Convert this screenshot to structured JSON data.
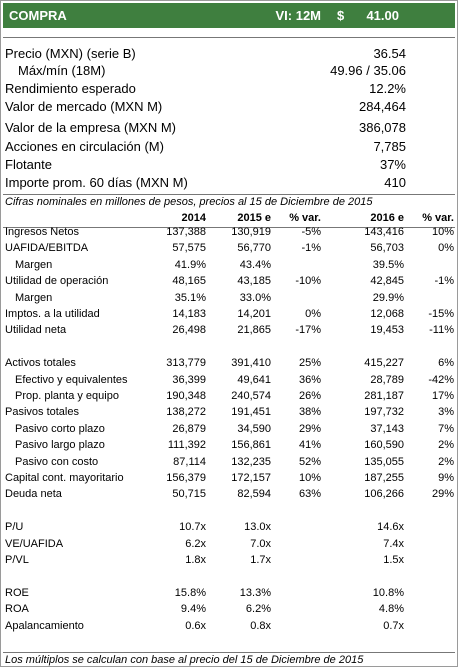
{
  "header": {
    "rating": "COMPRA",
    "horizon": "VI: 12M",
    "currency": "$",
    "target": "41.00"
  },
  "summary": [
    {
      "label": "Precio (MXN) (serie B)",
      "value": "36.54"
    },
    {
      "label": "Máx/mín (18M)",
      "value": "49.96 / 35.06",
      "sub": true
    },
    {
      "label": "Rendimiento esperado",
      "value": "12.2%"
    },
    {
      "label": "Valor de mercado (MXN M)",
      "value": "284,464"
    },
    {
      "label": "Valor de la empresa (MXN M)",
      "value": "386,078"
    },
    {
      "label": "Acciones en circulación (M)",
      "value": "7,785"
    },
    {
      "label": "Flotante",
      "value": "37%"
    },
    {
      "label": "Importe prom. 60 días (MXN M)",
      "value": "410"
    }
  ],
  "note": "Cifras nominales en millones de pesos, precios al 15 de Diciembre de 2015",
  "table": {
    "columns": [
      "2014",
      "2015 e",
      "% var.",
      "2016 e",
      "% var."
    ],
    "sections": [
      {
        "rows": [
          {
            "label": "Ingresos Netos",
            "cells": [
              "137,388",
              "130,919",
              "-5%",
              "143,416",
              "10%"
            ]
          },
          {
            "label": "UAFIDA/EBITDA",
            "cells": [
              "57,575",
              "56,770",
              "-1%",
              "56,703",
              "0%"
            ]
          },
          {
            "label": "Margen",
            "sub": true,
            "cells": [
              "41.9%",
              "43.4%",
              null,
              "39.5%",
              null
            ]
          },
          {
            "label": "Utilidad de operación",
            "cells": [
              "48,165",
              "43,185",
              "-10%",
              "42,845",
              "-1%"
            ]
          },
          {
            "label": "Margen",
            "sub": true,
            "cells": [
              "35.1%",
              "33.0%",
              null,
              "29.9%",
              null
            ]
          },
          {
            "label": "Imptos. a la utilidad",
            "cells": [
              "14,183",
              "14,201",
              "0%",
              "12,068",
              "-15%"
            ]
          },
          {
            "label": "Utilidad neta",
            "cells": [
              "26,498",
              "21,865",
              "-17%",
              "19,453",
              "-11%"
            ]
          }
        ]
      },
      {
        "rows": [
          {
            "label": "Activos totales",
            "cells": [
              "313,779",
              "391,410",
              "25%",
              "415,227",
              "6%"
            ]
          },
          {
            "label": "Efectivo y equivalentes",
            "sub": true,
            "cells": [
              "36,399",
              "49,641",
              "36%",
              "28,789",
              "-42%"
            ]
          },
          {
            "label": "Prop. planta y equipo",
            "sub": true,
            "cells": [
              "190,348",
              "240,574",
              "26%",
              "281,187",
              "17%"
            ]
          },
          {
            "label": "Pasivos totales",
            "cells": [
              "138,272",
              "191,451",
              "38%",
              "197,732",
              "3%"
            ]
          },
          {
            "label": "Pasivo corto plazo",
            "sub": true,
            "cells": [
              "26,879",
              "34,590",
              "29%",
              "37,143",
              "7%"
            ]
          },
          {
            "label": "Pasivo largo plazo",
            "sub": true,
            "cells": [
              "111,392",
              "156,861",
              "41%",
              "160,590",
              "2%"
            ]
          },
          {
            "label": "Pasivo con costo",
            "sub": true,
            "cells": [
              "87,114",
              "132,235",
              "52%",
              "135,055",
              "2%"
            ]
          },
          {
            "label": "Capital cont. mayoritario",
            "cells": [
              "156,379",
              "172,157",
              "10%",
              "187,255",
              "9%"
            ]
          },
          {
            "label": "Deuda neta",
            "cells": [
              "50,715",
              "82,594",
              "63%",
              "106,266",
              "29%"
            ]
          }
        ]
      },
      {
        "rows": [
          {
            "label": "P/U",
            "cells": [
              "10.7x",
              "13.0x",
              null,
              "14.6x",
              null
            ]
          },
          {
            "label": "VE/UAFIDA",
            "cells": [
              "6.2x",
              "7.0x",
              null,
              "7.4x",
              null
            ]
          },
          {
            "label": "P/VL",
            "cells": [
              "1.8x",
              "1.7x",
              null,
              "1.5x",
              null
            ]
          }
        ]
      },
      {
        "rows": [
          {
            "label": "ROE",
            "cells": [
              "15.8%",
              "13.3%",
              null,
              "10.8%",
              null
            ]
          },
          {
            "label": "ROA",
            "cells": [
              "9.4%",
              "6.2%",
              null,
              "4.8%",
              null
            ]
          },
          {
            "label": "Apalancamiento",
            "cells": [
              "0.6x",
              "0.8x",
              null,
              "0.7x",
              null
            ]
          }
        ]
      }
    ]
  },
  "footnote": "Los múltiplos se calculan con base al precio del 15 de Diciembre de 2015"
}
